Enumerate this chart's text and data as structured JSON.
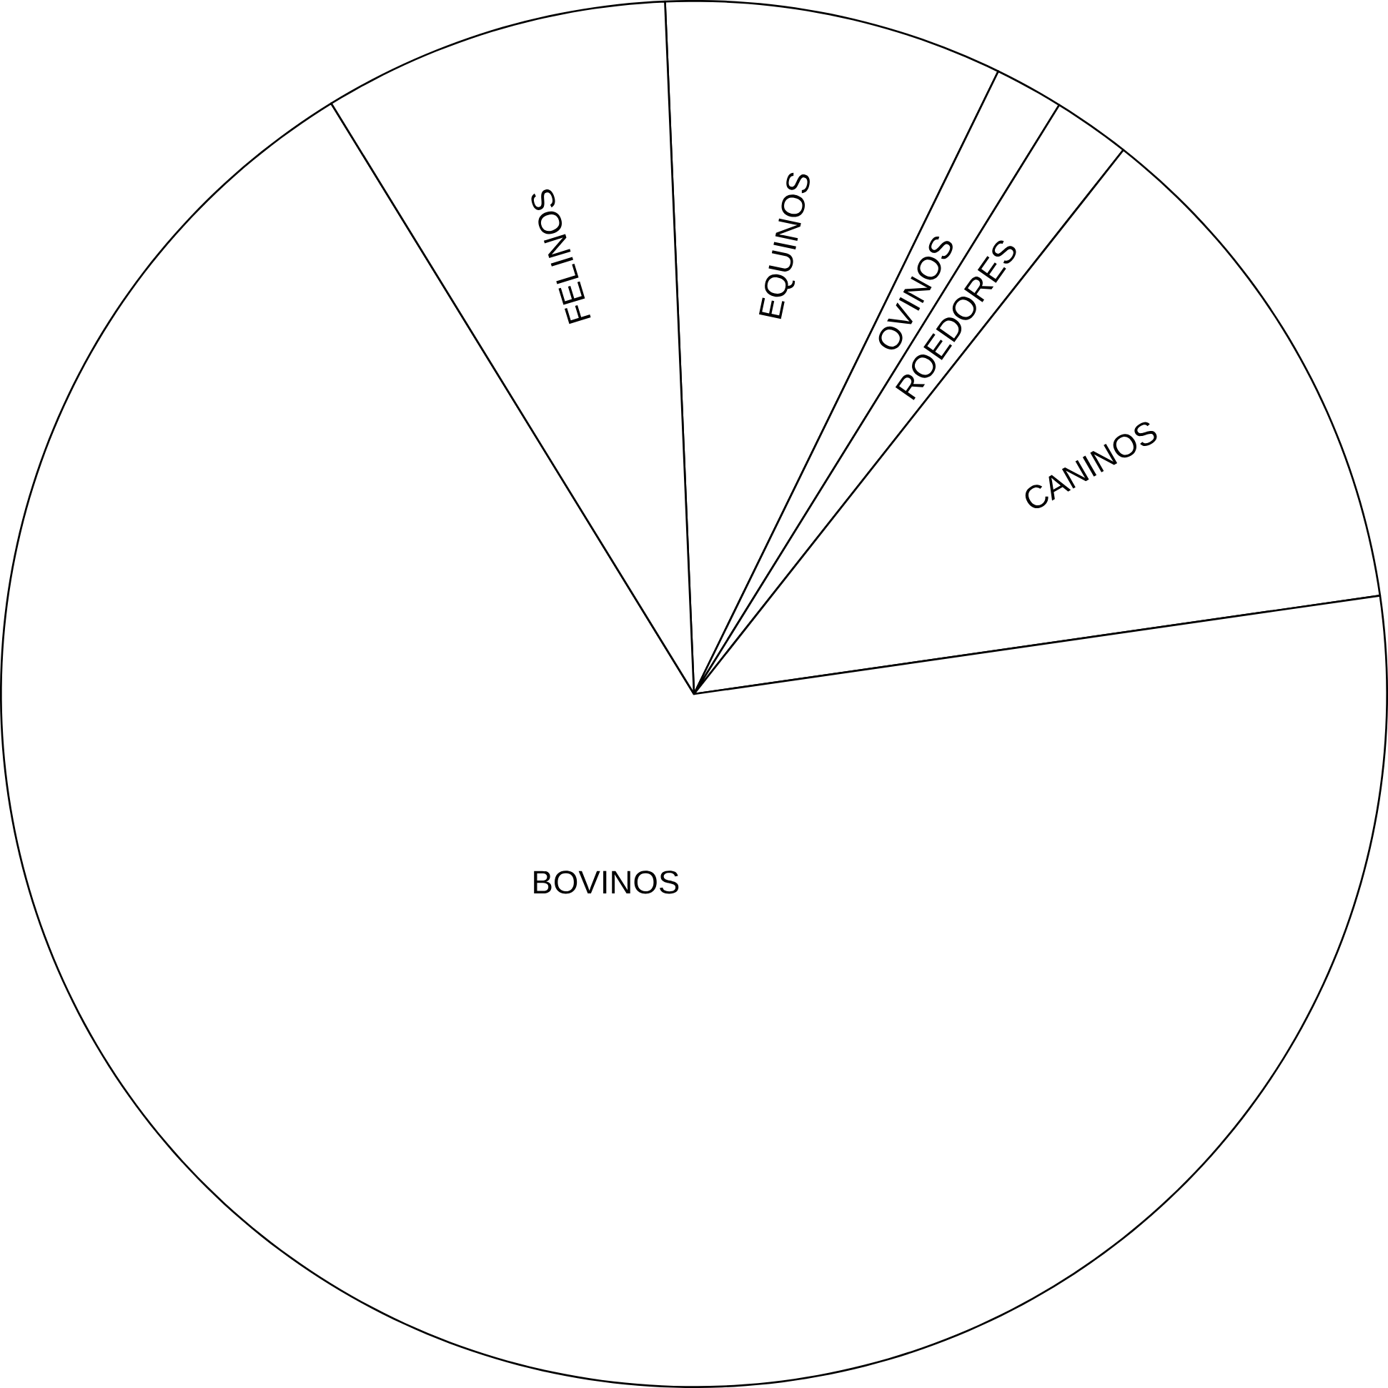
{
  "chart_data": {
    "type": "pie",
    "categories": [
      "EQUINOS",
      "OVINOS",
      "ROEDORES",
      "CANINOS",
      "BOVINOS",
      "FELINOS"
    ],
    "values": [
      7.9,
      1.6,
      1.8,
      12.1,
      68.5,
      8.1
    ],
    "colors": [
      "#ffffff",
      "#ffffff",
      "#ffffff",
      "#ffffff",
      "#ffffff",
      "#ffffff"
    ]
  }
}
